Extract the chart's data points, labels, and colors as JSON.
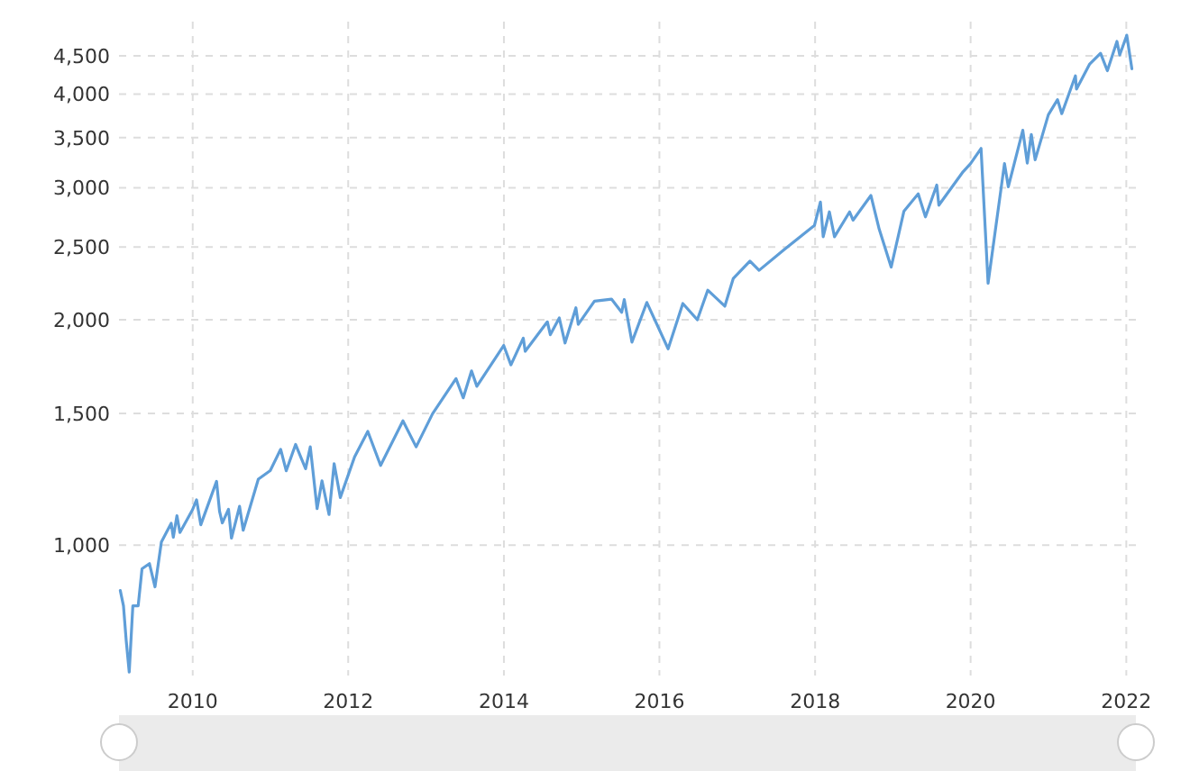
{
  "chart_data": {
    "type": "line",
    "log": "y",
    "grid": true,
    "line_style": "solid",
    "xlim": [
      "2009-01-20",
      "2022-02-15"
    ],
    "ylim": [
      670,
      5000
    ],
    "xticks": [
      "2010",
      "2012",
      "2014",
      "2016",
      "2018",
      "2020",
      "2022"
    ],
    "yticks": [
      {
        "value": 1000,
        "label": "1,000"
      },
      {
        "value": 1500,
        "label": "1,500"
      },
      {
        "value": 2000,
        "label": "2,000"
      },
      {
        "value": 2500,
        "label": "2,500"
      },
      {
        "value": 3000,
        "label": "3,000"
      },
      {
        "value": 3500,
        "label": "3,500"
      },
      {
        "value": 4000,
        "label": "4,000"
      },
      {
        "value": 4500,
        "label": "4,500"
      }
    ],
    "x": [
      "2009-01-26",
      "2009-02-10",
      "2009-02-23",
      "2009-03-09",
      "2009-03-26",
      "2009-04-20",
      "2009-05-08",
      "2009-06-12",
      "2009-07-08",
      "2009-08-07",
      "2009-09-22",
      "2009-10-02",
      "2009-10-19",
      "2009-11-02",
      "2009-12-31",
      "2010-01-19",
      "2010-02-08",
      "2010-04-23",
      "2010-05-07",
      "2010-05-20",
      "2010-06-18",
      "2010-07-02",
      "2010-08-09",
      "2010-08-26",
      "2010-11-05",
      "2010-12-31",
      "2011-02-18",
      "2011-03-16",
      "2011-04-29",
      "2011-06-15",
      "2011-07-07",
      "2011-08-08",
      "2011-08-31",
      "2011-10-03",
      "2011-10-27",
      "2011-11-25",
      "2012-01-31",
      "2012-04-02",
      "2012-06-01",
      "2012-09-14",
      "2012-11-15",
      "2013-01-31",
      "2013-05-21",
      "2013-06-24",
      "2013-08-02",
      "2013-08-27",
      "2013-12-31",
      "2014-02-03",
      "2014-04-02",
      "2014-04-11",
      "2014-07-24",
      "2014-08-07",
      "2014-09-18",
      "2014-10-15",
      "2014-12-05",
      "2014-12-16",
      "2015-03-02",
      "2015-05-21",
      "2015-07-08",
      "2015-07-20",
      "2015-08-25",
      "2015-11-03",
      "2016-02-11",
      "2016-04-20",
      "2016-06-27",
      "2016-08-15",
      "2016-11-03",
      "2016-12-13",
      "2017-03-01",
      "2017-04-13",
      "2017-08-08",
      "2017-12-29",
      "2018-01-26",
      "2018-02-08",
      "2018-03-09",
      "2018-04-02",
      "2018-06-12",
      "2018-06-28",
      "2018-09-20",
      "2018-10-29",
      "2018-12-24",
      "2019-02-22",
      "2019-04-30",
      "2019-06-03",
      "2019-07-26",
      "2019-08-05",
      "2019-11-27",
      "2019-12-31",
      "2020-02-19",
      "2020-03-23",
      "2020-06-08",
      "2020-06-26",
      "2020-09-02",
      "2020-09-23",
      "2020-10-12",
      "2020-10-30",
      "2020-12-31",
      "2021-02-12",
      "2021-03-04",
      "2021-05-07",
      "2021-05-12",
      "2021-07-12",
      "2021-09-02",
      "2021-10-04",
      "2021-11-18",
      "2021-12-01",
      "2021-12-31",
      "2022-01-03",
      "2022-01-27"
    ],
    "series": [
      {
        "color": "#5f9ed8",
        "values": [
          870,
          830,
          745,
          677,
          830,
          830,
          930,
          945,
          880,
          1010,
          1070,
          1025,
          1095,
          1040,
          1115,
          1150,
          1065,
          1217,
          1110,
          1071,
          1117,
          1022,
          1127,
          1047,
          1225,
          1258,
          1343,
          1257,
          1363,
          1265,
          1353,
          1119,
          1219,
          1099,
          1285,
          1158,
          1312,
          1419,
          1278,
          1466,
          1353,
          1498,
          1669,
          1573,
          1709,
          1630,
          1848,
          1741,
          1890,
          1815,
          1987,
          1910,
          2011,
          1862,
          2075,
          1972,
          2117,
          2131,
          2046,
          2128,
          1867,
          2109,
          1829,
          2102,
          2000,
          2190,
          2085,
          2271,
          2395,
          2328,
          2480,
          2673,
          2872,
          2581,
          2786,
          2581,
          2786,
          2716,
          2930,
          2641,
          2351,
          2792,
          2945,
          2744,
          3025,
          2844,
          3153,
          3230,
          3386,
          2237,
          3232,
          3009,
          3580,
          3237,
          3534,
          3270,
          3756,
          3934,
          3768,
          4232,
          4063,
          4384,
          4537,
          4300,
          4705,
          4513,
          4766,
          4796,
          4326
        ]
      }
    ]
  }
}
